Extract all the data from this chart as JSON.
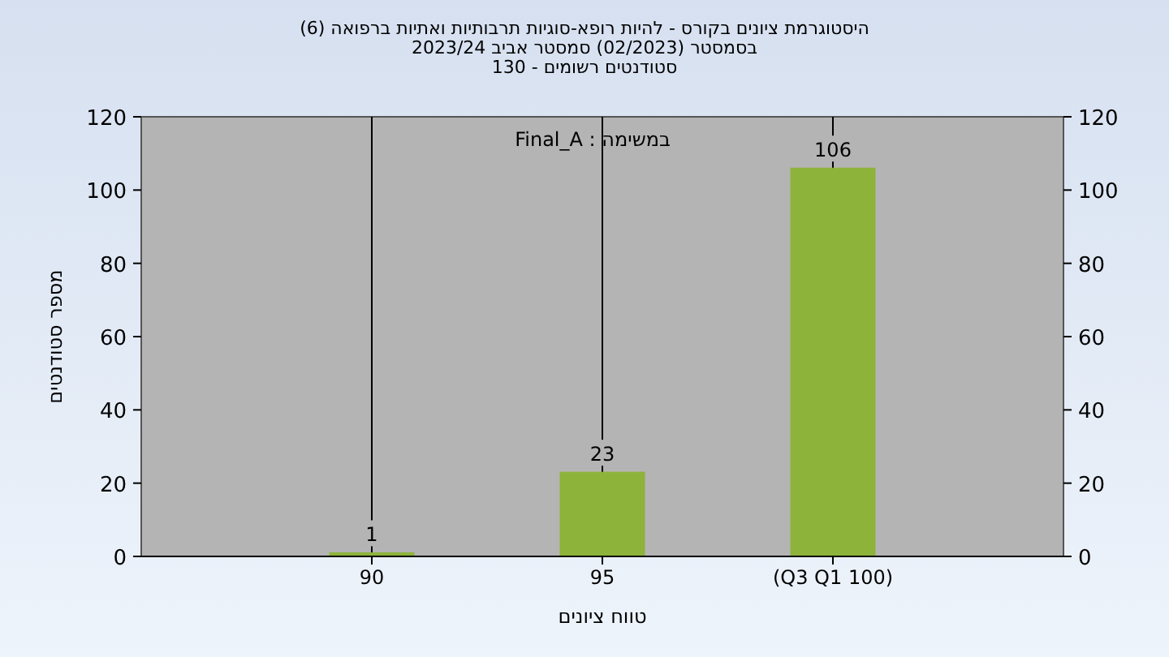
{
  "chart_data": {
    "type": "bar",
    "title": "היסטוגרמת ציונים בקורס - להיות רופא-סוגיות תרבותיות ואתיות ברפואה (6)",
    "subtitle": "בסמסטר (02/2023) סמסטר אביב 2023/24\nסטודנטים רשומים - 130",
    "xlabel": "טווח ציונים",
    "ylabel": "מספר סטודנטים",
    "annotations": [
      "במשימה : Final_A"
    ],
    "categories": [
      "90",
      "95",
      "(Q3 Q1 100)"
    ],
    "values": [
      1,
      23,
      106
    ],
    "color": "#8db33a",
    "ylim": [
      0,
      120
    ],
    "yticks": [
      0,
      20,
      40,
      60,
      80,
      100,
      120
    ],
    "y2lim": [
      0,
      120
    ],
    "y2ticks": [
      0,
      20,
      40,
      60,
      80,
      100,
      120
    ],
    "grid": "x",
    "data_labels": true
  }
}
